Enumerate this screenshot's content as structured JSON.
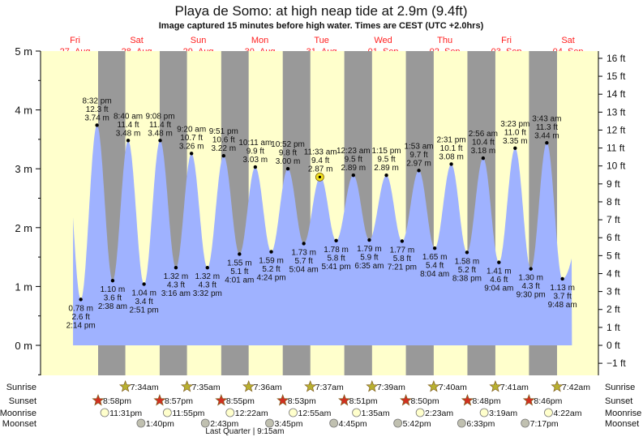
{
  "chart_data": {
    "type": "area",
    "title": "Playa de Somo: at high  neap tide at 2.9m (9.4ft)",
    "subtitle": "Image captured 15 minutes before high water. Times are CEST (UTC +2.0hrs)",
    "days": [
      {
        "dow": "Fri",
        "date": "27–Aug"
      },
      {
        "dow": "Sat",
        "date": "28–Aug"
      },
      {
        "dow": "Sun",
        "date": "29–Aug"
      },
      {
        "dow": "Mon",
        "date": "30–Aug"
      },
      {
        "dow": "Tue",
        "date": "31–Aug"
      },
      {
        "dow": "Wed",
        "date": "01–Sep"
      },
      {
        "dow": "Thu",
        "date": "02–Sep"
      },
      {
        "dow": "Fri",
        "date": "03–Sep"
      },
      {
        "dow": "Sat",
        "date": "04–Sep"
      }
    ],
    "y_left": {
      "unit": "m",
      "ticks": [
        "0 m",
        "1 m",
        "2 m",
        "3 m",
        "4 m",
        "5 m"
      ],
      "range": [
        -0.5,
        5
      ]
    },
    "y_right": {
      "unit": "ft",
      "ticks": [
        "−1 ft",
        "0 ft",
        "1 ft",
        "2 ft",
        "3 ft",
        "4 ft",
        "5 ft",
        "6 ft",
        "7 ft",
        "8 ft",
        "9 ft",
        "10 ft",
        "11 ft",
        "12 ft",
        "13 ft",
        "14 ft",
        "15 ft",
        "16 ft"
      ]
    },
    "extremes": [
      {
        "day": 0,
        "time": "2:14 pm",
        "hour": 14.23,
        "type": "low",
        "m": "0.78 m",
        "ft": "2.6 ft",
        "value": 0.78
      },
      {
        "day": 0,
        "time": "8:32 pm",
        "hour": 20.53,
        "type": "high",
        "m": "3.74 m",
        "ft": "12.3 ft",
        "value": 3.74
      },
      {
        "day": 1,
        "time": "2:38 am",
        "hour": 2.63,
        "type": "low",
        "m": "1.10 m",
        "ft": "3.6 ft",
        "value": 1.1
      },
      {
        "day": 1,
        "time": "8:40 am",
        "hour": 8.67,
        "type": "high",
        "m": "3.48 m",
        "ft": "11.4 ft",
        "value": 3.48
      },
      {
        "day": 1,
        "time": "2:51 pm",
        "hour": 14.85,
        "type": "low",
        "m": "1.04 m",
        "ft": "3.4 ft",
        "value": 1.04
      },
      {
        "day": 1,
        "time": "9:08 pm",
        "hour": 21.13,
        "type": "high",
        "m": "3.48 m",
        "ft": "11.4 ft",
        "value": 3.48
      },
      {
        "day": 2,
        "time": "3:16 am",
        "hour": 3.27,
        "type": "low",
        "m": "1.32 m",
        "ft": "4.3 ft",
        "value": 1.32
      },
      {
        "day": 2,
        "time": "9:20 am",
        "hour": 9.33,
        "type": "high",
        "m": "3.26 m",
        "ft": "10.7 ft",
        "value": 3.26
      },
      {
        "day": 2,
        "time": "3:32 pm",
        "hour": 15.53,
        "type": "low",
        "m": "1.32 m",
        "ft": "4.3 ft",
        "value": 1.32
      },
      {
        "day": 2,
        "time": "9:51 pm",
        "hour": 21.85,
        "type": "high",
        "m": "3.22 m",
        "ft": "10.6 ft",
        "value": 3.22
      },
      {
        "day": 3,
        "time": "4:01 am",
        "hour": 4.02,
        "type": "low",
        "m": "1.55 m",
        "ft": "5.1 ft",
        "value": 1.55
      },
      {
        "day": 3,
        "time": "10:11 am",
        "hour": 10.18,
        "type": "high",
        "m": "3.03 m",
        "ft": "9.9 ft",
        "value": 3.03
      },
      {
        "day": 3,
        "time": "4:24 pm",
        "hour": 16.4,
        "type": "low",
        "m": "1.59 m",
        "ft": "5.2 ft",
        "value": 1.59
      },
      {
        "day": 3,
        "time": "10:52 pm",
        "hour": 22.87,
        "type": "high",
        "m": "3.00 m",
        "ft": "9.8 ft",
        "value": 3.0
      },
      {
        "day": 4,
        "time": "5:04 am",
        "hour": 5.07,
        "type": "low",
        "m": "1.73 m",
        "ft": "5.7 ft",
        "value": 1.73
      },
      {
        "day": 4,
        "time": "11:33 am",
        "hour": 11.55,
        "type": "high",
        "m": "2.87 m",
        "ft": "9.4 ft",
        "value": 2.87
      },
      {
        "day": 4,
        "time": "5:41 pm",
        "hour": 17.68,
        "type": "low",
        "m": "1.78 m",
        "ft": "5.8 ft",
        "value": 1.78
      },
      {
        "day": 5,
        "time": "12:23 am",
        "hour": 0.38,
        "type": "high",
        "m": "2.89 m",
        "ft": "9.5 ft",
        "value": 2.89
      },
      {
        "day": 5,
        "time": "6:35 am",
        "hour": 6.58,
        "type": "low",
        "m": "1.79 m",
        "ft": "5.9 ft",
        "value": 1.79
      },
      {
        "day": 5,
        "time": "1:15 pm",
        "hour": 13.25,
        "type": "high",
        "m": "2.89 m",
        "ft": "9.5 ft",
        "value": 2.89
      },
      {
        "day": 5,
        "time": "7:21 pm",
        "hour": 19.35,
        "type": "low",
        "m": "1.77 m",
        "ft": "5.8 ft",
        "value": 1.77
      },
      {
        "day": 6,
        "time": "1:53 am",
        "hour": 1.88,
        "type": "high",
        "m": "2.97 m",
        "ft": "9.7 ft",
        "value": 2.97
      },
      {
        "day": 6,
        "time": "8:04 am",
        "hour": 8.07,
        "type": "low",
        "m": "1.65 m",
        "ft": "5.4 ft",
        "value": 1.65
      },
      {
        "day": 6,
        "time": "2:31 pm",
        "hour": 14.52,
        "type": "high",
        "m": "3.08 m",
        "ft": "10.1 ft",
        "value": 3.08
      },
      {
        "day": 6,
        "time": "8:38 pm",
        "hour": 20.63,
        "type": "low",
        "m": "1.58 m",
        "ft": "5.2 ft",
        "value": 1.58
      },
      {
        "day": 7,
        "time": "2:56 am",
        "hour": 2.93,
        "type": "high",
        "m": "3.18 m",
        "ft": "10.4 ft",
        "value": 3.18
      },
      {
        "day": 7,
        "time": "9:04 am",
        "hour": 9.07,
        "type": "low",
        "m": "1.41 m",
        "ft": "4.6 ft",
        "value": 1.41
      },
      {
        "day": 7,
        "time": "3:23 pm",
        "hour": 15.38,
        "type": "high",
        "m": "3.35 m",
        "ft": "11.0 ft",
        "value": 3.35
      },
      {
        "day": 7,
        "time": "9:30 pm",
        "hour": 21.5,
        "type": "low",
        "m": "1.30 m",
        "ft": "4.3 ft",
        "value": 1.3
      },
      {
        "day": 8,
        "time": "3:43 am",
        "hour": 3.72,
        "type": "high",
        "m": "3.44 m",
        "ft": "11.3 ft",
        "value": 3.44
      },
      {
        "day": 8,
        "time": "9:48 am",
        "hour": 9.8,
        "type": "low",
        "m": "1.13 m",
        "ft": "3.7 ft",
        "value": 1.13
      }
    ],
    "now": {
      "day": 4,
      "hour": 11.3,
      "value": 2.86
    },
    "sun_moon": {
      "labels": {
        "sunrise": "Sunrise",
        "sunset": "Sunset",
        "moonrise": "Moonrise",
        "moonset": "Moonset"
      },
      "sunrise": [
        {
          "day": 1,
          "hour": 7.57,
          "time": "7:34am"
        },
        {
          "day": 2,
          "hour": 7.58,
          "time": "7:35am"
        },
        {
          "day": 3,
          "hour": 7.6,
          "time": "7:36am"
        },
        {
          "day": 4,
          "hour": 7.62,
          "time": "7:37am"
        },
        {
          "day": 5,
          "hour": 7.65,
          "time": "7:39am"
        },
        {
          "day": 6,
          "hour": 7.67,
          "time": "7:40am"
        },
        {
          "day": 7,
          "hour": 7.68,
          "time": "7:41am"
        },
        {
          "day": 8,
          "hour": 7.7,
          "time": "7:42am"
        }
      ],
      "sunset": [
        {
          "day": 0,
          "hour": 20.97,
          "time": "8:58pm"
        },
        {
          "day": 1,
          "hour": 20.95,
          "time": "8:57pm"
        },
        {
          "day": 2,
          "hour": 20.92,
          "time": "8:55pm"
        },
        {
          "day": 3,
          "hour": 20.88,
          "time": "8:53pm"
        },
        {
          "day": 4,
          "hour": 20.85,
          "time": "8:51pm"
        },
        {
          "day": 5,
          "hour": 20.83,
          "time": "8:50pm"
        },
        {
          "day": 6,
          "hour": 20.8,
          "time": "8:48pm"
        },
        {
          "day": 7,
          "hour": 20.77,
          "time": "8:46pm"
        }
      ],
      "moonrise": [
        {
          "day": 0,
          "hour": 23.52,
          "time": "11:31pm"
        },
        {
          "day": 1,
          "hour": 23.92,
          "time": "11:55pm"
        },
        {
          "day": 3,
          "hour": 0.37,
          "time": "12:22am"
        },
        {
          "day": 4,
          "hour": 0.92,
          "time": "12:55am"
        },
        {
          "day": 5,
          "hour": 1.58,
          "time": "1:35am"
        },
        {
          "day": 6,
          "hour": 2.38,
          "time": "2:23am"
        },
        {
          "day": 7,
          "hour": 3.32,
          "time": "3:19am"
        },
        {
          "day": 8,
          "hour": 4.37,
          "time": "4:22am"
        }
      ],
      "moonset": [
        {
          "day": 1,
          "hour": 13.67,
          "time": "1:40pm"
        },
        {
          "day": 2,
          "hour": 14.72,
          "time": "2:43pm"
        },
        {
          "day": 3,
          "hour": 15.75,
          "time": "3:45pm"
        },
        {
          "day": 4,
          "hour": 16.75,
          "time": "4:45pm"
        },
        {
          "day": 5,
          "hour": 17.7,
          "time": "5:42pm"
        },
        {
          "day": 6,
          "hour": 18.55,
          "time": "6:33pm"
        },
        {
          "day": 7,
          "hour": 19.28,
          "time": "7:17pm"
        }
      ],
      "moon_phase": {
        "day": 3,
        "hour": 9.25,
        "text": "Last Quarter | 9:15am"
      }
    },
    "colors": {
      "day": "#ffffcc",
      "night": "#999999",
      "water": "#9fb2ff",
      "date": "#ff2020",
      "sun_rise": "#b8b030",
      "sun_set": "#d03020",
      "moonrise": "#ffffcc",
      "moonset": "#c0c0b0"
    }
  }
}
